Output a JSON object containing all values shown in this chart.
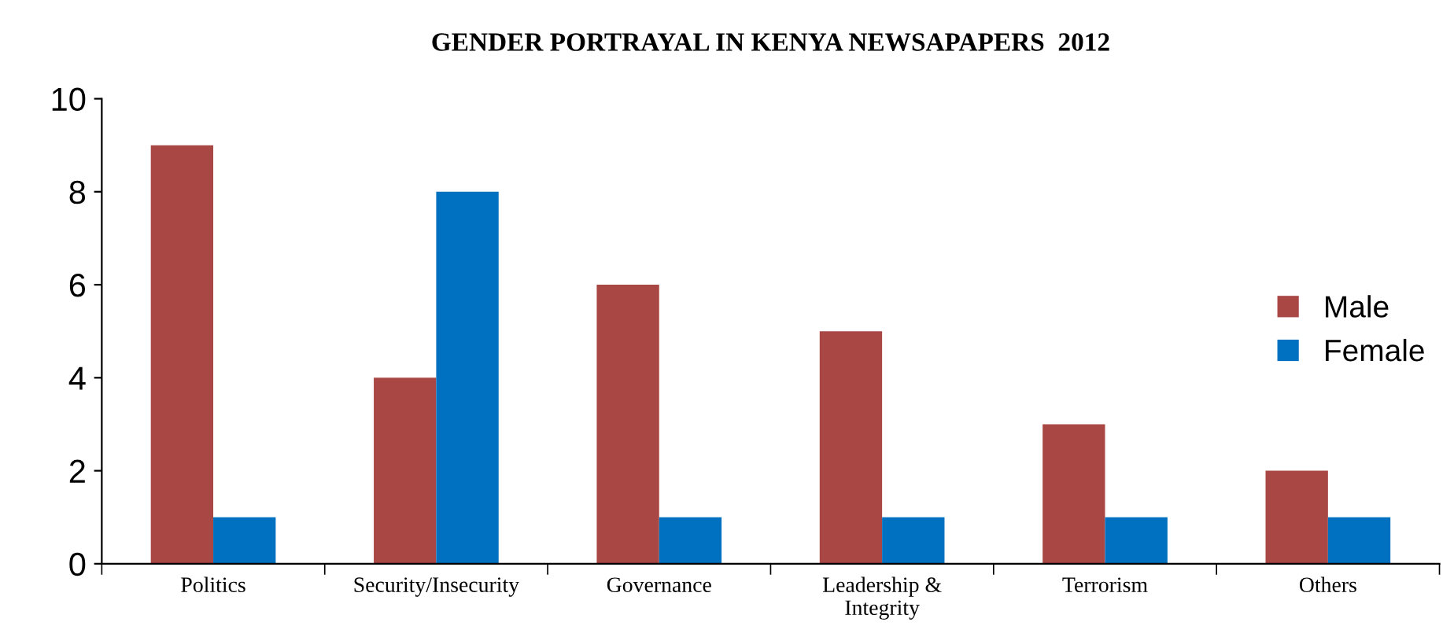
{
  "chart_data": {
    "type": "bar",
    "title": "GENDER PORTRAYAL IN KENYA NEWSAPAPERS  2012",
    "categories": [
      "Politics",
      "Security/Insecurity",
      "Governance",
      "Leadership &\nIntegrity",
      "Terrorism",
      "Others"
    ],
    "series": [
      {
        "name": "Male",
        "color": "#a94744",
        "values": [
          9,
          4,
          6,
          5,
          3,
          2
        ]
      },
      {
        "name": "Female",
        "color": "#0070c0",
        "values": [
          1,
          8,
          1,
          1,
          1,
          1
        ]
      }
    ],
    "ylim": [
      0,
      10
    ],
    "yticks": [
      0,
      2,
      4,
      6,
      8,
      10
    ],
    "grid": false,
    "legend": "right"
  }
}
